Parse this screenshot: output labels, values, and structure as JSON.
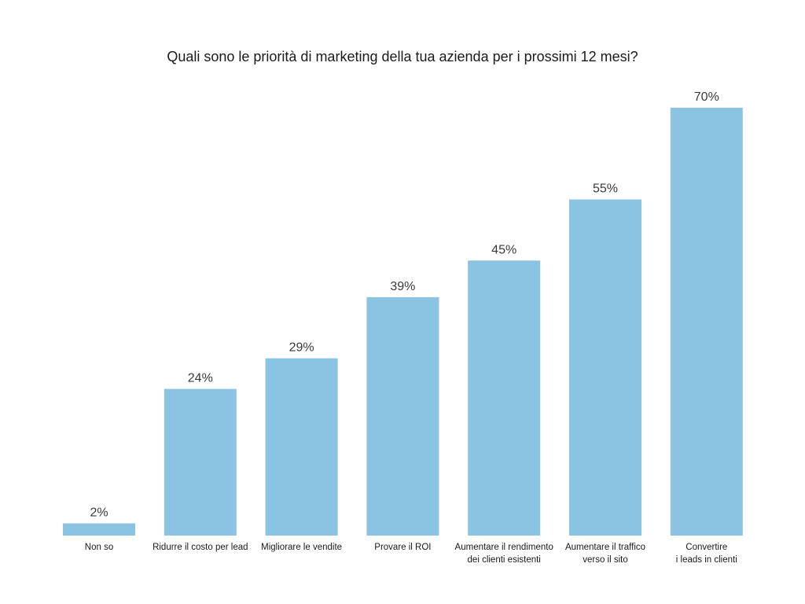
{
  "chart_data": {
    "type": "bar",
    "title": "Quali sono le priorità di marketing della tua azienda per i prossimi 12 mesi?",
    "categories": [
      [
        "Non so"
      ],
      [
        "Ridurre il costo per lead"
      ],
      [
        "Migliorare le vendite"
      ],
      [
        "Provare il ROI"
      ],
      [
        "Aumentare il rendimento",
        "dei clienti esistenti"
      ],
      [
        "Aumentare il traffico",
        "verso il sito"
      ],
      [
        "Convertire",
        "i leads in clienti"
      ]
    ],
    "values": [
      2,
      24,
      29,
      39,
      45,
      55,
      70
    ],
    "value_labels": [
      "2%",
      "24%",
      "29%",
      "39%",
      "45%",
      "55%",
      "70%"
    ],
    "ylim": [
      0,
      70
    ],
    "xlabel": "",
    "ylabel": "",
    "grid": false,
    "bar_color": "#8BC3E3"
  }
}
